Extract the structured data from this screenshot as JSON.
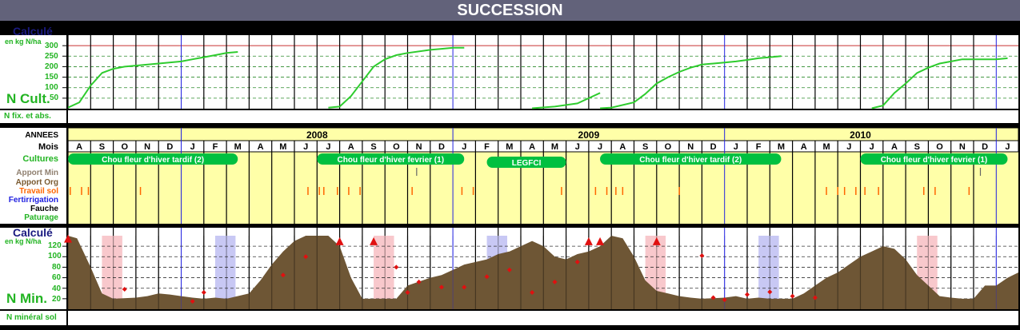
{
  "title": "SUCCESSION",
  "colors": {
    "green_label": "#22b422",
    "navy": "#1a1a80",
    "ncult_line": "#2ecc2e",
    "threshold": "#c83232",
    "blue_line": "#2020e0",
    "nmin_fill": "#6e5635",
    "marker": "#e01010",
    "crop_bar": "#00c040",
    "band_yellow": "#ffffa8",
    "shade_pink": "#f8c8cc",
    "shade_blue": "#c8c8f4",
    "tick_orange": "#ff6600"
  },
  "top_panel": {
    "heading": "Calculé",
    "unit": "en kg N/ha",
    "label": "N Cult.",
    "yticks": [
      "300",
      "250",
      "200",
      "150",
      "100",
      "50"
    ]
  },
  "nfix_label": "N fix. et abs.",
  "band": {
    "row_labels": {
      "annees": "ANNEES",
      "mois": "Mois",
      "cultures": "Cultures",
      "apport_min": "Apport Min",
      "apport_org": "Apport Org",
      "travail_sol": "Travail sol",
      "fertirrigation": "Fertirrigation",
      "fauche": "Fauche",
      "paturage": "Paturage"
    },
    "years": [
      "2008",
      "2009",
      "2010"
    ],
    "months": [
      "A",
      "S",
      "O",
      "N",
      "D",
      "J",
      "F",
      "M",
      "A",
      "M",
      "J",
      "J",
      "A",
      "S",
      "O",
      "N",
      "D",
      "J",
      "F",
      "M",
      "A",
      "M",
      "J",
      "J",
      "A",
      "S",
      "O",
      "N",
      "D",
      "J",
      "F",
      "M",
      "A",
      "M",
      "J",
      "J",
      "A",
      "S",
      "O",
      "N",
      "D",
      "J"
    ],
    "crops": [
      {
        "label": "Chou fleur d'hiver tardif (2)"
      },
      {
        "label": "Chou fleur d'hiver fevrier (1)"
      },
      {
        "label": "LEGFCI"
      },
      {
        "label": "Chou fleur d'hiver tardif (2)"
      },
      {
        "label": "Chou fleur d'hiver fevrier (1)"
      }
    ]
  },
  "bottom_panel": {
    "heading": "Calculé",
    "unit": "en kg N/ha",
    "label": "N Min.",
    "yticks": [
      "120",
      "100",
      "80",
      "60",
      "40",
      "20"
    ]
  },
  "nmin_sol_label": "N minéral sol",
  "chart_data": [
    {
      "type": "line",
      "title": "N Cult.",
      "ylabel": "en kg N/ha",
      "x_unit": "months since August 2007",
      "ylim": [
        0,
        350
      ],
      "threshold": 300,
      "series": [
        {
          "name": "",
          "x": [
            0,
            0.5,
            1,
            1.5,
            2,
            2.5,
            3,
            4,
            5,
            5.5,
            6,
            6.5,
            7,
            7.5
          ],
          "y": [
            5,
            30,
            110,
            170,
            190,
            200,
            205,
            215,
            225,
            235,
            245,
            255,
            265,
            270
          ]
        },
        {
          "name": "",
          "x": [
            11.5,
            12,
            12.5,
            13,
            13.5,
            14,
            14.5,
            15,
            16,
            16.5,
            17,
            17.5
          ],
          "y": [
            5,
            10,
            60,
            130,
            200,
            235,
            255,
            265,
            280,
            285,
            290,
            290
          ]
        },
        {
          "name": "",
          "x": [
            20.5,
            21.5,
            22.5,
            23,
            23.5
          ],
          "y": [
            2,
            10,
            25,
            50,
            75
          ]
        },
        {
          "name": "",
          "x": [
            23.5,
            24,
            25,
            25.5,
            26,
            26.5,
            27,
            27.5,
            28,
            29,
            29.5,
            30,
            30.5,
            31,
            31.5
          ],
          "y": [
            2,
            5,
            30,
            70,
            120,
            150,
            175,
            195,
            210,
            220,
            225,
            232,
            240,
            245,
            250
          ]
        },
        {
          "name": "",
          "x": [
            35.5,
            36,
            36.5,
            37,
            37.5,
            38,
            38.5,
            39,
            39.5,
            40,
            41,
            41.5
          ],
          "y": [
            2,
            15,
            75,
            120,
            170,
            195,
            215,
            225,
            235,
            235,
            235,
            240
          ]
        }
      ]
    },
    {
      "type": "area",
      "title": "N Min.",
      "ylabel": "en kg N/ha",
      "x_unit": "months since August 2007",
      "ylim": [
        0,
        140
      ],
      "series": [
        {
          "name": "",
          "x": [
            0,
            0.4,
            1,
            1.5,
            2,
            3,
            3.5,
            4,
            4.5,
            5,
            5.5,
            6,
            6.5,
            7,
            8,
            8.5,
            9,
            9.5,
            10,
            10.5,
            11,
            11.5,
            12,
            12.5,
            13,
            13.5,
            14,
            14.5,
            15,
            16,
            16.5,
            17,
            17.5,
            18,
            18.5,
            19,
            19.5,
            20,
            20.5,
            21,
            21.5,
            22,
            22.5,
            23,
            23.5,
            24,
            24.5,
            25,
            25.5,
            26,
            26.5,
            27,
            27.5,
            28,
            29,
            29.5,
            30,
            30.5,
            31,
            32,
            32.5,
            33,
            33.5,
            34,
            34.5,
            35,
            35.5,
            36,
            36.5,
            37,
            37.5,
            38,
            38.5,
            39,
            39.5,
            40,
            40.5,
            41,
            41.5,
            42
          ],
          "y": [
            140,
            135,
            80,
            30,
            20,
            22,
            25,
            30,
            28,
            25,
            22,
            20,
            22,
            20,
            30,
            55,
            85,
            110,
            130,
            140,
            140,
            140,
            120,
            60,
            20,
            20,
            20,
            20,
            45,
            60,
            65,
            75,
            85,
            90,
            95,
            105,
            110,
            120,
            130,
            120,
            100,
            95,
            105,
            110,
            120,
            140,
            135,
            100,
            55,
            35,
            30,
            25,
            22,
            20,
            22,
            25,
            20,
            22,
            20,
            20,
            30,
            45,
            60,
            70,
            85,
            100,
            110,
            120,
            115,
            95,
            65,
            45,
            25,
            22,
            20,
            20,
            45,
            45,
            60,
            70
          ]
        },
        {
          "name": "",
          "x": [
            0,
            2.5,
            5.5,
            6,
            9.5,
            10.5,
            12,
            13.5,
            14.5,
            15,
            15.5,
            16.5,
            17.5,
            18.5,
            19.5,
            20.5,
            21.5,
            22.5,
            23,
            23.5,
            26,
            28,
            28.5,
            29,
            30,
            31,
            32,
            33
          ],
          "y": [
            138,
            38,
            15,
            32,
            65,
            100,
            128,
            128,
            80,
            32,
            52,
            42,
            42,
            62,
            75,
            32,
            52,
            90,
            128,
            128,
            128,
            102,
            22,
            18,
            28,
            33,
            25,
            22
          ]
        }
      ],
      "shaded_periods": [
        {
          "color": "pink",
          "from": 1.5,
          "to": 2.4
        },
        {
          "color": "blue",
          "from": 6.5,
          "to": 7.4
        },
        {
          "color": "pink",
          "from": 13.5,
          "to": 14.4
        },
        {
          "color": "blue",
          "from": 18.5,
          "to": 19.4
        },
        {
          "color": "pink",
          "from": 25.5,
          "to": 26.4
        },
        {
          "color": "blue",
          "from": 30.5,
          "to": 31.4
        },
        {
          "color": "pink",
          "from": 37.5,
          "to": 38.4
        }
      ]
    }
  ]
}
